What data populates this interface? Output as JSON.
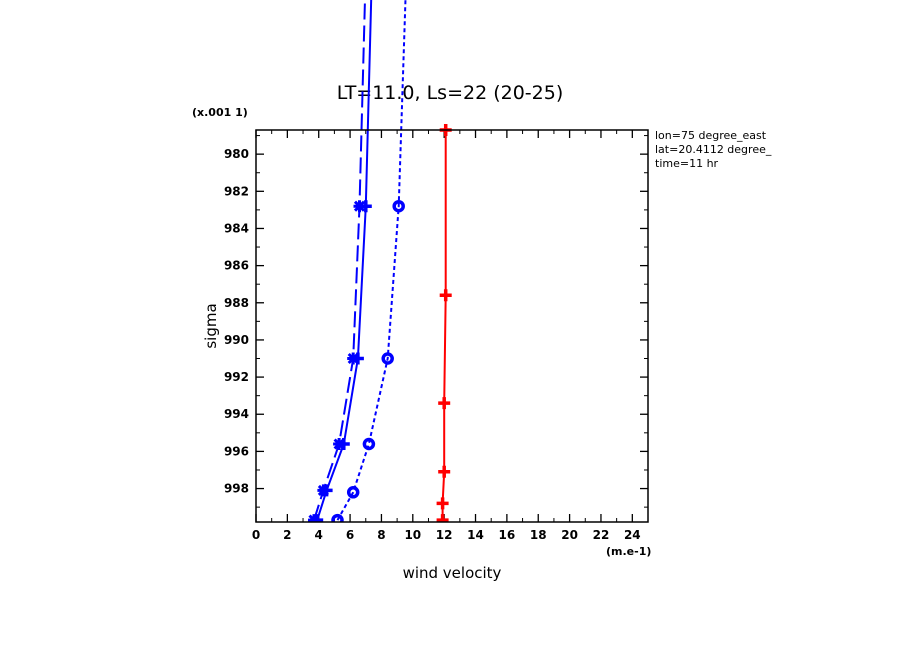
{
  "chart_data": {
    "type": "line",
    "title": "LT=11.0, Ls=22 (20-25)",
    "xlabel": "wind velocity",
    "ylabel": "sigma",
    "x_unit": "(m.e-1)",
    "y_unit": "(x.001 1)",
    "xlim": [
      0,
      25
    ],
    "ylim": [
      999.8,
      978.7
    ],
    "x_ticks": [
      0,
      2,
      4,
      6,
      8,
      10,
      12,
      14,
      16,
      18,
      20,
      22,
      24
    ],
    "y_ticks": [
      980,
      982,
      984,
      986,
      988,
      990,
      992,
      994,
      996,
      998
    ],
    "x_tick_labels": [
      "0",
      "2",
      "4",
      "6",
      "8",
      "10",
      "12",
      "14",
      "16",
      "18",
      "20",
      "22",
      "24"
    ],
    "y_tick_labels": [
      "980",
      "982",
      "984",
      "986",
      "988",
      "990",
      "992",
      "994",
      "996",
      "998"
    ],
    "info": [
      "lon=75 degree_east",
      "lat=20.4112 degree_",
      "time=11 hr"
    ],
    "series": [
      {
        "style": "long-dash",
        "color": "#0000ff",
        "marker": "star",
        "x": [
          3.7,
          4.3,
          5.3,
          6.2,
          6.6,
          7.0
        ],
        "y": [
          999.7,
          998.1,
          995.6,
          991.0,
          982.8,
          970.0
        ]
      },
      {
        "style": "solid",
        "color": "#0000ff",
        "marker": "plus",
        "x": [
          3.9,
          4.5,
          5.6,
          6.5,
          7.0,
          7.4
        ],
        "y": [
          999.7,
          998.1,
          995.6,
          991.0,
          982.8,
          970.0
        ]
      },
      {
        "style": "dashed",
        "color": "#0000ff",
        "marker": "circle",
        "x": [
          5.2,
          6.2,
          7.2,
          8.4,
          9.1,
          9.6
        ],
        "y": [
          999.7,
          998.2,
          995.6,
          991.0,
          982.8,
          970.0
        ]
      },
      {
        "style": "solid",
        "color": "#ff0000",
        "marker": "plus",
        "x": [
          11.9,
          11.9,
          12.0,
          12.0,
          12.1,
          12.1
        ],
        "y": [
          999.7,
          998.8,
          997.1,
          993.4,
          987.6,
          978.7
        ]
      }
    ]
  }
}
